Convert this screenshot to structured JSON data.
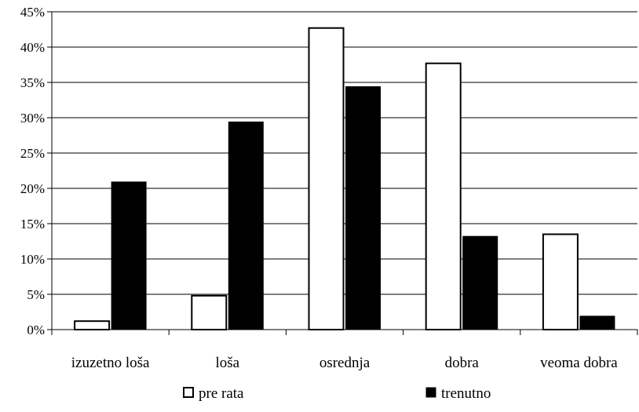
{
  "chart_data": {
    "type": "bar",
    "categories": [
      "izuzetno loša",
      "loša",
      "osrednja",
      "dobra",
      "veoma dobra"
    ],
    "series": [
      {
        "name": "pre rata",
        "values": [
          1.2,
          4.8,
          42.7,
          37.7,
          13.5
        ],
        "color": "#ffffff"
      },
      {
        "name": "trenutno",
        "values": [
          20.9,
          29.4,
          34.4,
          13.2,
          1.9
        ],
        "color": "#000000"
      }
    ],
    "yticks": [
      "0%",
      "5%",
      "10%",
      "15%",
      "20%",
      "25%",
      "30%",
      "35%",
      "40%",
      "45%"
    ],
    "ylim": [
      0,
      45
    ],
    "grid": true,
    "legend_position": "bottom"
  }
}
